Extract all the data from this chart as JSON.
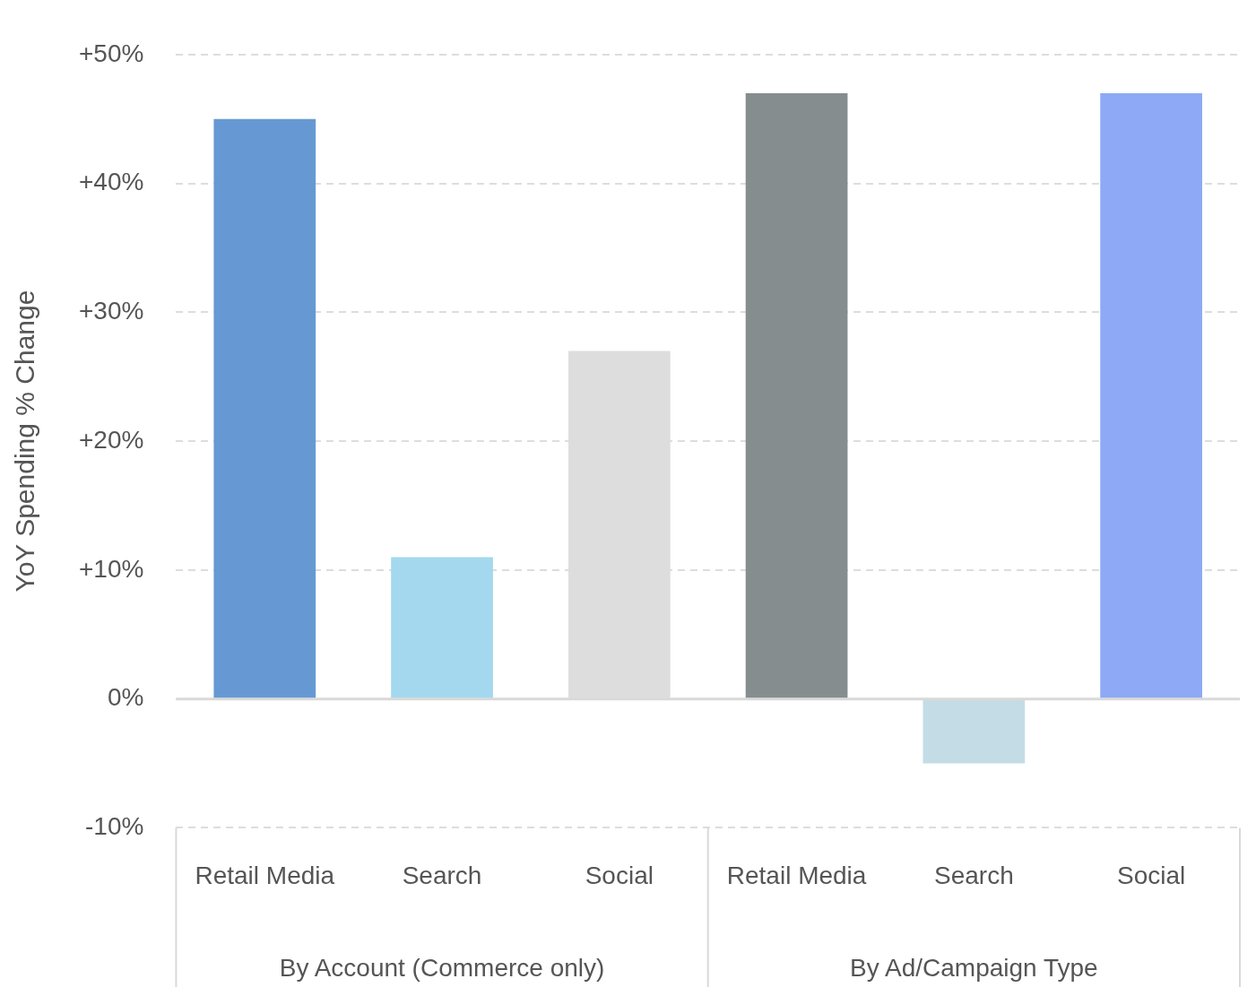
{
  "chart_data": {
    "type": "bar",
    "ylabel": "YoY Spending % Change",
    "categories": [
      "Retail Media",
      "Search",
      "Social",
      "Retail Media",
      "Search",
      "Social"
    ],
    "values": [
      45,
      11,
      27,
      47,
      -5,
      47
    ],
    "colors": [
      "#6699d3",
      "#a3d8ee",
      "#dddddd",
      "#868d8f",
      "#c4dce6",
      "#8ea9f5"
    ],
    "ylim": [
      -10,
      50
    ],
    "yticks": [
      {
        "value": -10,
        "label": "-10%"
      },
      {
        "value": 0,
        "label": "0%"
      },
      {
        "value": 10,
        "label": "+10%"
      },
      {
        "value": 20,
        "label": "+20%"
      },
      {
        "value": 30,
        "label": "+30%"
      },
      {
        "value": 40,
        "label": "+40%"
      },
      {
        "value": 50,
        "label": "+50%"
      }
    ],
    "grid": "y",
    "legend": false,
    "annotations": [
      "By Account (Commerce only)",
      "By Ad/Campaign Type"
    ]
  }
}
